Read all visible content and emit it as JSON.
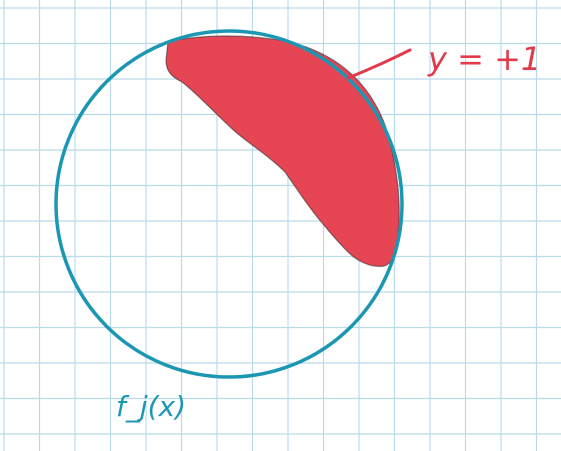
{
  "labels": {
    "region": "y = +1",
    "circle": "f_j(x)"
  },
  "colors": {
    "grid": "#b9dbe8",
    "circle": "#1b97b3",
    "region_fill": "#e64553",
    "region_label": "#e23a4b",
    "circle_label": "#1b97b3"
  },
  "icons": [
    "hand-drawn-circle",
    "filled-red-region",
    "pointer-line"
  ]
}
